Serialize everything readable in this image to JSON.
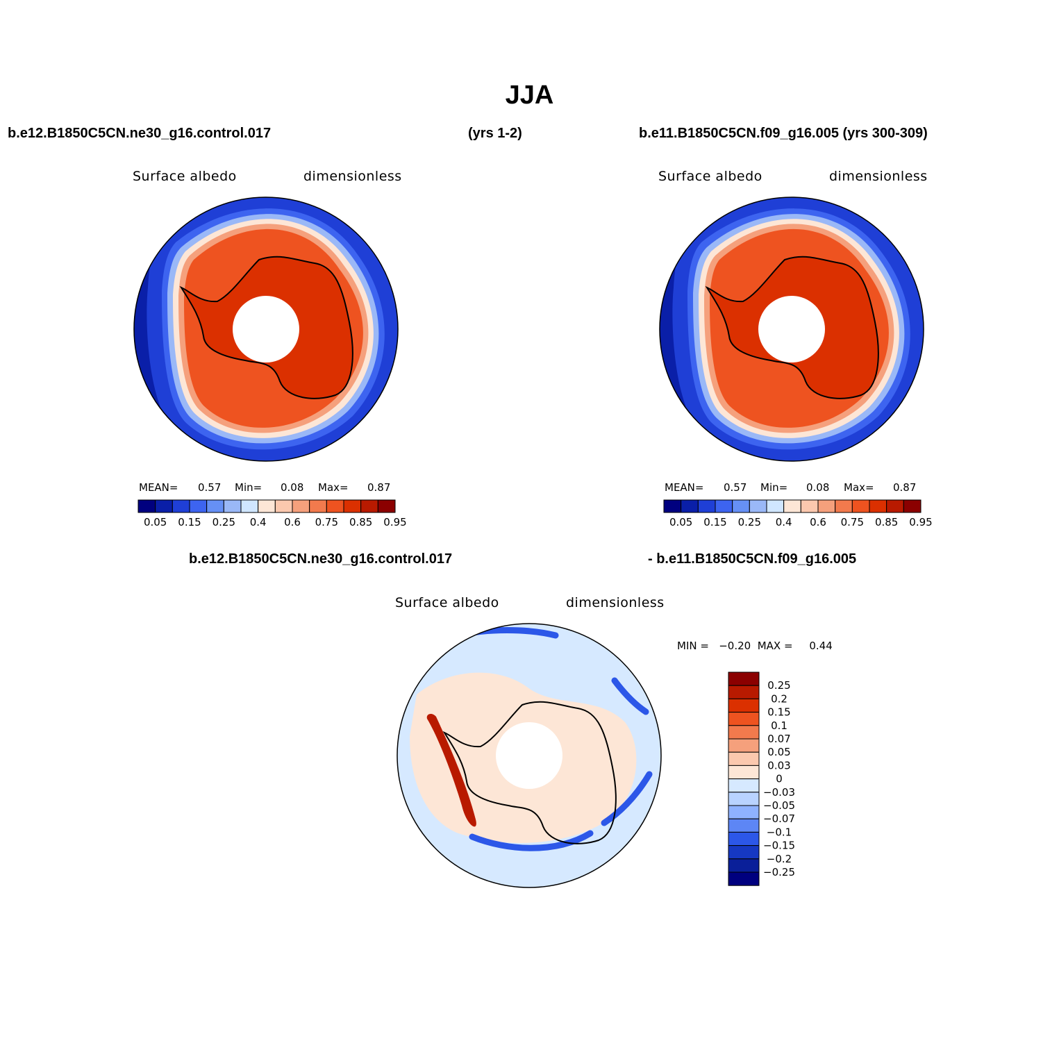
{
  "title": "JJA",
  "header": {
    "left_case": "b.e12.B1850C5CN.ne30_g16.control.017",
    "left_years": "(yrs 1-2)",
    "right_case": "b.e11.B1850C5CN.f09_g16.005 (yrs 300-309)"
  },
  "panels": [
    {
      "variable": "Surface albedo",
      "units": "dimensionless",
      "stats": {
        "mean_label": "MEAN=",
        "mean": "0.57",
        "min_label": "Min=",
        "min": "0.08",
        "max_label": "Max=",
        "max": "0.87"
      }
    },
    {
      "variable": "Surface albedo",
      "units": "dimensionless",
      "stats": {
        "mean_label": "MEAN=",
        "mean": "0.57",
        "min_label": "Min=",
        "min": "0.08",
        "max_label": "Max=",
        "max": "0.87"
      }
    }
  ],
  "abs_colorbar": {
    "colors": [
      "#00007f",
      "#0a1fa8",
      "#1f3fd6",
      "#3d64f0",
      "#6690f5",
      "#9ab8f7",
      "#d0e6ff",
      "#fde6d6",
      "#fbc8ae",
      "#f5a07c",
      "#f27a4d",
      "#ee5320",
      "#db3000",
      "#b81a00",
      "#8b0000"
    ],
    "labels": [
      "0.05",
      "0.15",
      "0.25",
      "0.4",
      "0.6",
      "0.75",
      "0.85",
      "0.95"
    ]
  },
  "diff": {
    "title_left": "b.e12.B1850C5CN.ne30_g16.control.017",
    "title_right": "- b.e11.B1850C5CN.f09_g16.005",
    "variable": "Surface albedo",
    "units": "dimensionless",
    "minmax": "MIN =   −0.20  MAX =     0.44",
    "colors": [
      "#8b0000",
      "#b81a00",
      "#db3000",
      "#ee5320",
      "#f27a4d",
      "#f5a07c",
      "#fbc8ae",
      "#fde6d6",
      "#d6e9ff",
      "#b9d3ff",
      "#8fb2ff",
      "#5d86f5",
      "#2c57e8",
      "#1638c2",
      "#0a1f99",
      "#00007f"
    ],
    "labels": [
      "0.25",
      "0.2",
      "0.15",
      "0.1",
      "0.07",
      "0.05",
      "0.03",
      "0",
      "−0.03",
      "−0.05",
      "−0.07",
      "−0.1",
      "−0.15",
      "−0.2",
      "−0.25"
    ]
  },
  "field_colors": {
    "deep_ocean": "#0a1fa8",
    "ocean": "#1f3fd6",
    "ice_edge_1": "#3d64f0",
    "ice_edge_2": "#9ab8f7",
    "ice_edge_3": "#fde6d6",
    "sea_ice_1": "#f5a07c",
    "sea_ice_2": "#ee5320",
    "land_ice": "#db3000",
    "diff_bg": "#d6e9ff",
    "diff_pos": "#fde6d6",
    "diff_red": "#b81a00",
    "diff_blue": "#2c57e8"
  }
}
